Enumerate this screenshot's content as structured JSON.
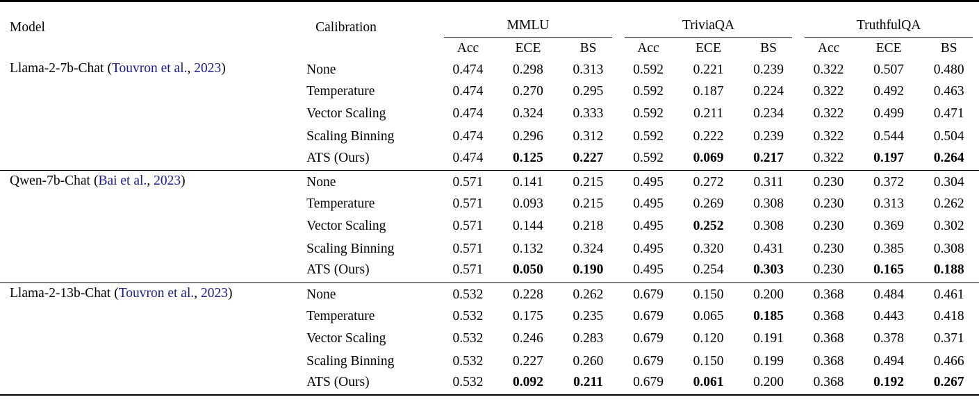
{
  "table": {
    "headers": {
      "model": "Model",
      "calibration": "Calibration"
    },
    "benchmarks": [
      "MMLU",
      "TriviaQA",
      "TruthfulQA"
    ],
    "metrics": [
      "Acc",
      "ECE",
      "BS"
    ],
    "punct": {
      "open": "(",
      "sep": ", ",
      "close": ")"
    },
    "citation_color": "#1b1b8f",
    "groups": [
      {
        "model": "Llama-2-7b-Chat",
        "citation": {
          "author": "Touvron et al.",
          "year": "2023"
        },
        "rows": [
          {
            "calibration": "None",
            "values": [
              "0.474",
              "0.298",
              "0.313",
              "0.592",
              "0.221",
              "0.239",
              "0.322",
              "0.507",
              "0.480"
            ],
            "bold": []
          },
          {
            "calibration": "Temperature",
            "values": [
              "0.474",
              "0.270",
              "0.295",
              "0.592",
              "0.187",
              "0.224",
              "0.322",
              "0.492",
              "0.463"
            ],
            "bold": []
          },
          {
            "calibration": "Vector Scaling",
            "values": [
              "0.474",
              "0.324",
              "0.333",
              "0.592",
              "0.211",
              "0.234",
              "0.322",
              "0.499",
              "0.471"
            ],
            "bold": []
          },
          {
            "calibration": "Scaling Binning",
            "values": [
              "0.474",
              "0.296",
              "0.312",
              "0.592",
              "0.222",
              "0.239",
              "0.322",
              "0.544",
              "0.504"
            ],
            "bold": []
          },
          {
            "calibration": "ATS (Ours)",
            "values": [
              "0.474",
              "0.125",
              "0.227",
              "0.592",
              "0.069",
              "0.217",
              "0.322",
              "0.197",
              "0.264"
            ],
            "bold": [
              1,
              2,
              4,
              5,
              7,
              8
            ]
          }
        ]
      },
      {
        "model": "Qwen-7b-Chat",
        "citation": {
          "author": "Bai et al.",
          "year": "2023"
        },
        "rows": [
          {
            "calibration": "None",
            "values": [
              "0.571",
              "0.141",
              "0.215",
              "0.495",
              "0.272",
              "0.311",
              "0.230",
              "0.372",
              "0.304"
            ],
            "bold": []
          },
          {
            "calibration": "Temperature",
            "values": [
              "0.571",
              "0.093",
              "0.215",
              "0.495",
              "0.269",
              "0.308",
              "0.230",
              "0.313",
              "0.262"
            ],
            "bold": []
          },
          {
            "calibration": "Vector Scaling",
            "values": [
              "0.571",
              "0.144",
              "0.218",
              "0.495",
              "0.252",
              "0.308",
              "0.230",
              "0.369",
              "0.302"
            ],
            "bold": [
              4
            ]
          },
          {
            "calibration": "Scaling Binning",
            "values": [
              "0.571",
              "0.132",
              "0.324",
              "0.495",
              "0.320",
              "0.431",
              "0.230",
              "0.385",
              "0.308"
            ],
            "bold": []
          },
          {
            "calibration": "ATS (Ours)",
            "values": [
              "0.571",
              "0.050",
              "0.190",
              "0.495",
              "0.254",
              "0.303",
              "0.230",
              "0.165",
              "0.188"
            ],
            "bold": [
              1,
              2,
              5,
              7,
              8
            ]
          }
        ]
      },
      {
        "model": "Llama-2-13b-Chat",
        "citation": {
          "author": "Touvron et al.",
          "year": "2023"
        },
        "rows": [
          {
            "calibration": "None",
            "values": [
              "0.532",
              "0.228",
              "0.262",
              "0.679",
              "0.150",
              "0.200",
              "0.368",
              "0.484",
              "0.461"
            ],
            "bold": []
          },
          {
            "calibration": "Temperature",
            "values": [
              "0.532",
              "0.175",
              "0.235",
              "0.679",
              "0.065",
              "0.185",
              "0.368",
              "0.443",
              "0.418"
            ],
            "bold": [
              5
            ]
          },
          {
            "calibration": "Vector Scaling",
            "values": [
              "0.532",
              "0.246",
              "0.283",
              "0.679",
              "0.120",
              "0.191",
              "0.368",
              "0.378",
              "0.371"
            ],
            "bold": []
          },
          {
            "calibration": "Scaling Binning",
            "values": [
              "0.532",
              "0.227",
              "0.260",
              "0.679",
              "0.150",
              "0.199",
              "0.368",
              "0.494",
              "0.466"
            ],
            "bold": []
          },
          {
            "calibration": "ATS (Ours)",
            "values": [
              "0.532",
              "0.092",
              "0.211",
              "0.679",
              "0.061",
              "0.200",
              "0.368",
              "0.192",
              "0.267"
            ],
            "bold": [
              1,
              2,
              4,
              7,
              8
            ]
          }
        ]
      }
    ]
  }
}
